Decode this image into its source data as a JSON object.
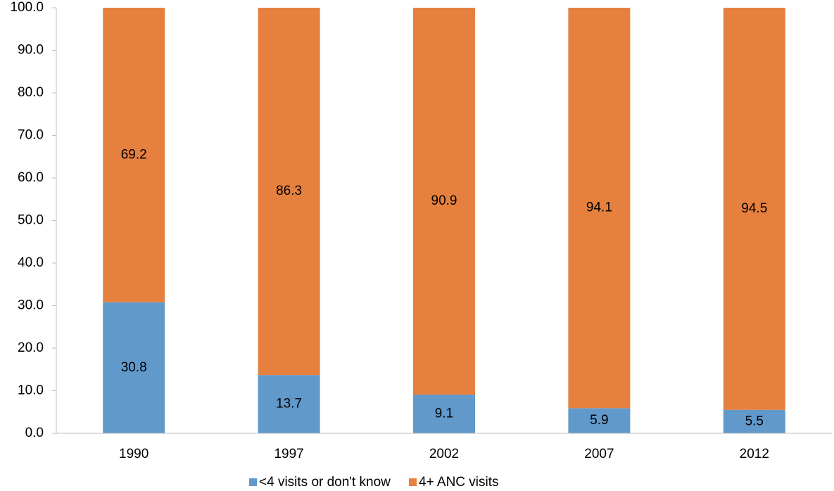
{
  "chart_data": {
    "type": "stacked_bar",
    "categories": [
      "1990",
      "1997",
      "2002",
      "2007",
      "2012"
    ],
    "series": [
      {
        "name": "<4 visits or don't know",
        "color": "#6199cb",
        "values": [
          30.8,
          13.7,
          9.1,
          5.9,
          5.5
        ]
      },
      {
        "name": "4+ ANC visits",
        "color": "#e6803f",
        "values": [
          69.2,
          86.3,
          90.9,
          94.1,
          94.5
        ]
      }
    ],
    "ylim": [
      0,
      100
    ],
    "yticks": [
      {
        "value": 0,
        "label": "0.0"
      },
      {
        "value": 10,
        "label": "10.0"
      },
      {
        "value": 20,
        "label": "20.0"
      },
      {
        "value": 30,
        "label": "30.0"
      },
      {
        "value": 40,
        "label": "40.0"
      },
      {
        "value": 50,
        "label": "50.0"
      },
      {
        "value": 60,
        "label": "60.0"
      },
      {
        "value": 70,
        "label": "70.0"
      },
      {
        "value": 80,
        "label": "80.0"
      },
      {
        "value": 90,
        "label": "90.0"
      },
      {
        "value": 100,
        "label": "100.0"
      }
    ],
    "grid": false,
    "legend": "bottom"
  }
}
